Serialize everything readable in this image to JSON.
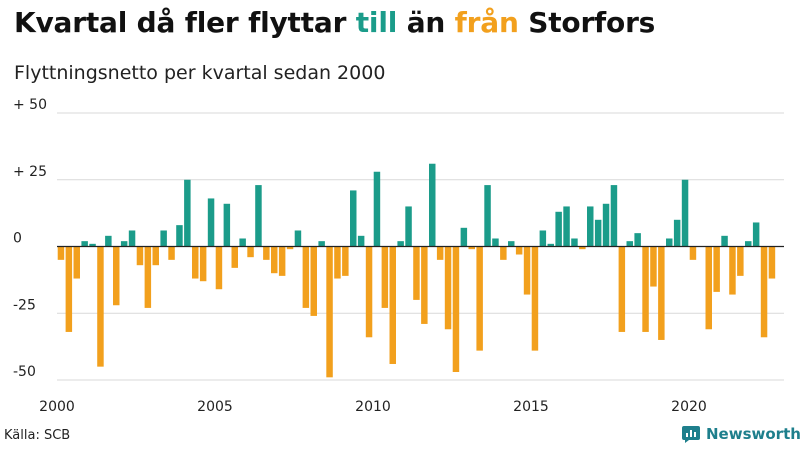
{
  "header": {
    "title_parts": [
      "Kvartal då fler flyttar ",
      "till",
      " än ",
      "från",
      " Storfors"
    ],
    "subtitle": "Flyttningsnetto per kvartal sedan 2000"
  },
  "footer": {
    "source": "Källa: SCB",
    "brand": "Newsworthy"
  },
  "colors": {
    "positive": "#1b9c8a",
    "negative": "#f2a01d",
    "grid": "#d9d9d9",
    "zero_line": "#222222",
    "brand": "#1e7f8c"
  },
  "icons": {
    "brand_logo": "bar-chart-speech-bubble-icon"
  },
  "chart_data": {
    "type": "bar",
    "start_year": 2000,
    "periods_per_year": 4,
    "ylim": [
      -50,
      50
    ],
    "y_ticks": [
      {
        "value": 50,
        "label": "+ 50"
      },
      {
        "value": 25,
        "label": "+ 25"
      },
      {
        "value": 0,
        "label": "0"
      },
      {
        "value": -25,
        "label": "-25"
      },
      {
        "value": -50,
        "label": "-50"
      }
    ],
    "x_ticks": [
      {
        "year": 2000,
        "label": "2000"
      },
      {
        "year": 2005,
        "label": "2005"
      },
      {
        "year": 2010,
        "label": "2010"
      },
      {
        "year": 2015,
        "label": "2015"
      },
      {
        "year": 2020,
        "label": "2020"
      }
    ],
    "grid": true,
    "values": [
      -5,
      -32,
      -12,
      2,
      1,
      -45,
      4,
      -22,
      2,
      6,
      -7,
      -23,
      -7,
      6,
      -5,
      8,
      25,
      -12,
      -13,
      18,
      -16,
      16,
      -8,
      3,
      -4,
      23,
      -5,
      -10,
      -11,
      -1,
      6,
      -23,
      -26,
      2,
      -49,
      -12,
      -11,
      21,
      4,
      -34,
      28,
      -23,
      -44,
      2,
      15,
      -20,
      -29,
      31,
      -5,
      -31,
      -47,
      7,
      -1,
      -39,
      23,
      3,
      -5,
      2,
      -3,
      -18,
      -39,
      6,
      1,
      13,
      15,
      3,
      -1,
      15,
      10,
      16,
      23,
      -32,
      2,
      5,
      -32,
      -15,
      -35,
      3,
      10,
      25,
      -5,
      0,
      -31,
      -17,
      4,
      -18,
      -11,
      2,
      9,
      -34,
      -12
    ]
  }
}
